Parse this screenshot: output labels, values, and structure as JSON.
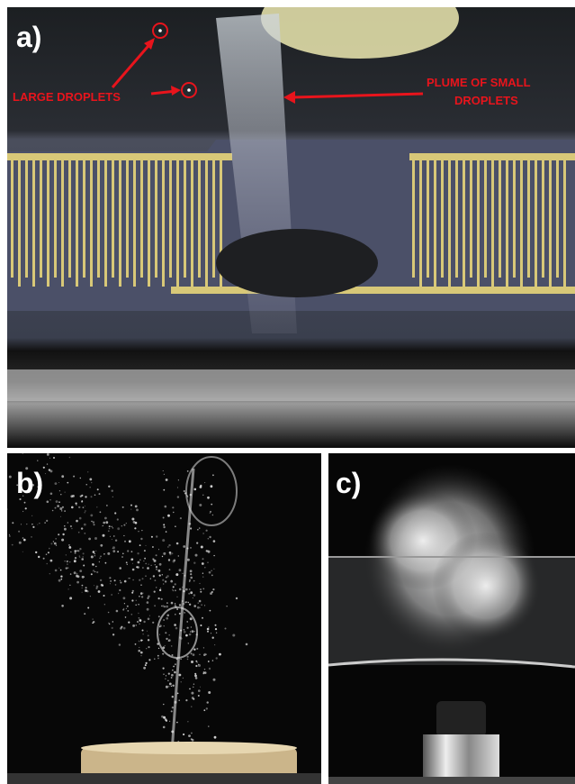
{
  "panels": [
    {
      "label": "a)",
      "annotations": [
        {
          "text": "LARGE DROPLETS"
        },
        {
          "lines": [
            "PLUME OF SMALL",
            "DROPLETS"
          ]
        }
      ]
    },
    {
      "label": "b)"
    },
    {
      "label": "c)"
    }
  ]
}
